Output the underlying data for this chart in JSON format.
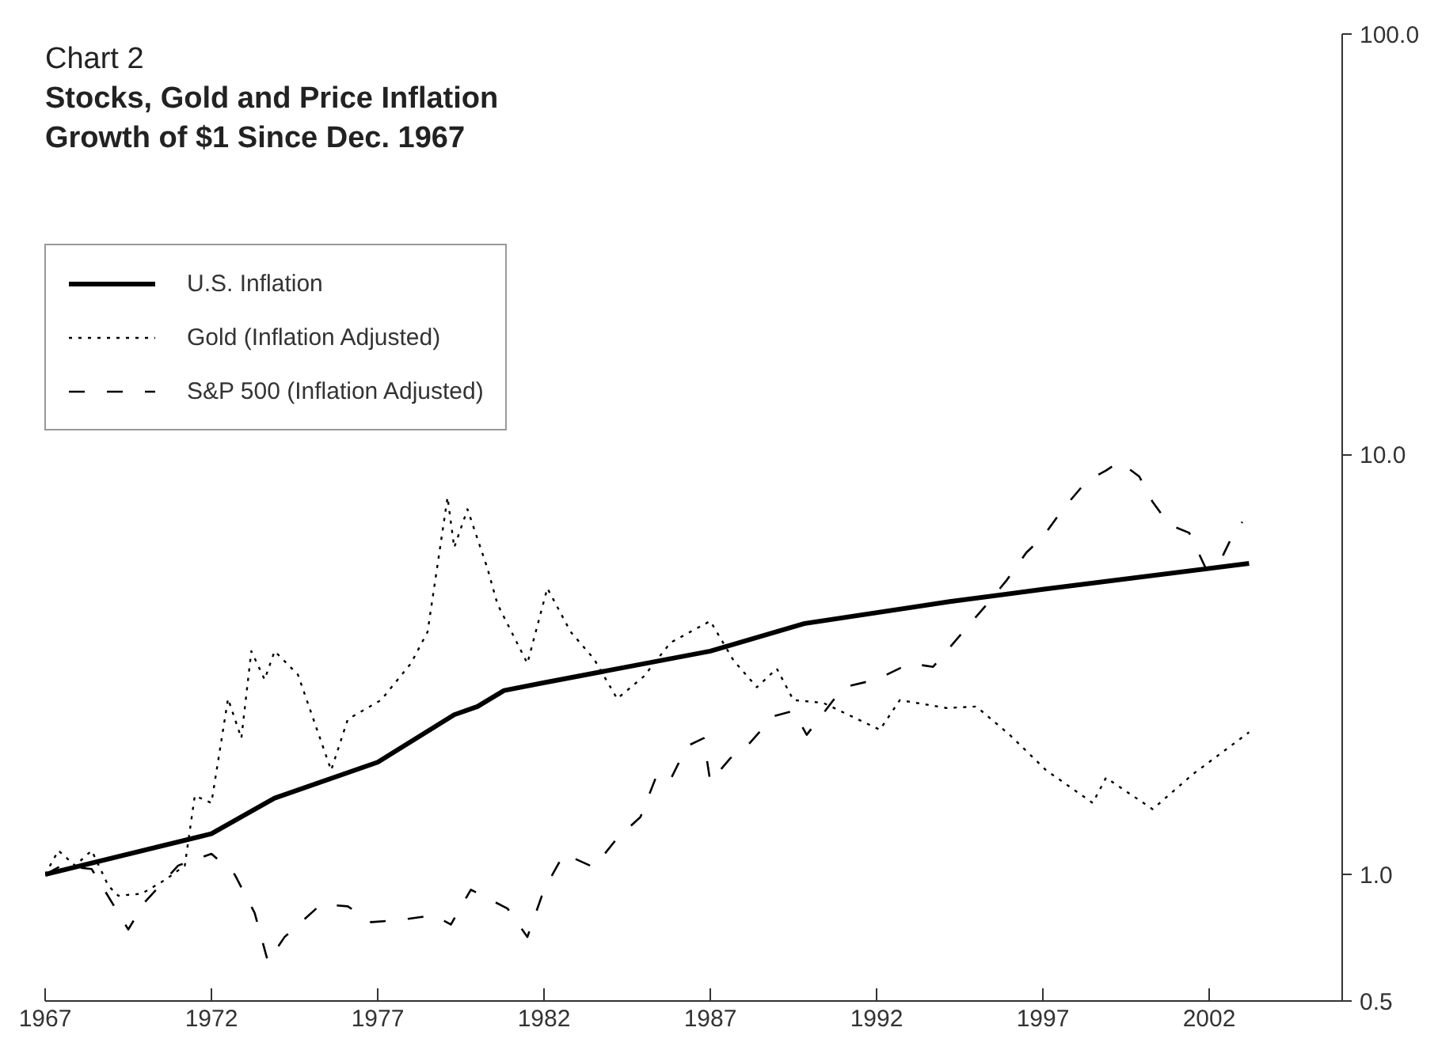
{
  "chart_data": {
    "type": "line",
    "annotations": [
      "Chart 2"
    ],
    "title": "Stocks, Gold and Price Inflation",
    "subtitle": "Growth of $1 Since Dec. 1967",
    "xlim": [
      1967,
      2006
    ],
    "xticks": [
      1967,
      1972,
      1977,
      1982,
      1987,
      1992,
      1997,
      2002
    ],
    "ylim": [
      0.5,
      100
    ],
    "yticks": [
      {
        "value": 0.5,
        "label": "0.5"
      },
      {
        "value": 1,
        "label": "1.0"
      },
      {
        "value": 10,
        "label": "10.0"
      },
      {
        "value": 100,
        "label": "100.0"
      }
    ],
    "log": "y",
    "grid": false,
    "legend": "top left",
    "marker": "none",
    "series": [
      {
        "name": "U.S. Inflation",
        "color": "#000000",
        "line_style": "solid",
        "x": [
          1967.0,
          1972.0,
          1973.9,
          1977.0,
          1979.3,
          1980.0,
          1980.8,
          1982.0,
          1987.0,
          1989.8,
          1994.2,
          1997.0,
          2003.2
        ],
        "values": [
          1.0,
          1.25,
          1.52,
          1.85,
          2.4,
          2.51,
          2.74,
          2.86,
          3.4,
          3.95,
          4.46,
          4.77,
          5.5
        ]
      },
      {
        "name": "Gold (Inflation Adjusted)",
        "color": "#000000",
        "line_style": "dotted",
        "x": [
          1967.0,
          1967.4,
          1967.9,
          1968.4,
          1968.9,
          1969.2,
          1969.9,
          1970.6,
          1971.2,
          1971.5,
          1972.0,
          1972.5,
          1972.9,
          1973.2,
          1973.6,
          1973.9,
          1974.6,
          1975.6,
          1976.1,
          1977.1,
          1978.0,
          1978.5,
          1979.1,
          1979.3,
          1979.7,
          1980.3,
          1980.6,
          1981.5,
          1982.1,
          1982.8,
          1983.5,
          1984.2,
          1985.0,
          1985.8,
          1987.0,
          1987.7,
          1988.4,
          1989.0,
          1989.5,
          1990.4,
          1992.1,
          1992.7,
          1994.1,
          1995.0,
          1996.0,
          1997.1,
          1998.5,
          1998.9,
          2000.3,
          2001.5,
          2003.2
        ],
        "values": [
          1.0,
          1.14,
          1.05,
          1.14,
          0.94,
          0.89,
          0.9,
          0.97,
          1.05,
          1.54,
          1.48,
          2.62,
          2.11,
          3.4,
          2.91,
          3.4,
          2.99,
          1.77,
          2.34,
          2.6,
          3.18,
          3.78,
          7.9,
          6.0,
          7.4,
          5.35,
          4.4,
          3.18,
          4.8,
          3.78,
          3.26,
          2.62,
          2.96,
          3.56,
          4.01,
          3.23,
          2.79,
          3.09,
          2.6,
          2.56,
          2.21,
          2.6,
          2.49,
          2.51,
          2.15,
          1.77,
          1.48,
          1.7,
          1.43,
          1.73,
          2.18
        ]
      },
      {
        "name": "S&P 500 (Inflation Adjusted)",
        "color": "#000000",
        "line_style": "dashed",
        "x": [
          1967.0,
          1967.5,
          1968.4,
          1969.5,
          1970.0,
          1971.0,
          1972.0,
          1972.7,
          1973.3,
          1973.7,
          1974.2,
          1975.3,
          1976.1,
          1976.8,
          1977.7,
          1978.7,
          1979.2,
          1979.8,
          1980.9,
          1981.5,
          1982.0,
          1982.6,
          1983.5,
          1984.2,
          1984.9,
          1985.4,
          1985.8,
          1986.3,
          1986.8,
          1987.0,
          1987.6,
          1988.2,
          1988.9,
          1989.5,
          1989.9,
          1991.0,
          1992.0,
          1993.0,
          1993.7,
          1994.4,
          1995.3,
          1995.9,
          1996.5,
          1997.0,
          1997.6,
          1998.3,
          1998.9,
          1999.3,
          1999.9,
          2000.3,
          2000.8,
          2001.4,
          2001.9,
          2002.3,
          2002.8,
          2003.0
        ],
        "values": [
          1.0,
          1.05,
          1.03,
          0.74,
          0.86,
          1.05,
          1.12,
          1.0,
          0.81,
          0.62,
          0.71,
          0.85,
          0.84,
          0.77,
          0.78,
          0.8,
          0.76,
          0.92,
          0.83,
          0.71,
          0.92,
          1.12,
          1.04,
          1.22,
          1.37,
          1.73,
          1.68,
          2.02,
          2.11,
          1.66,
          1.89,
          2.06,
          2.38,
          2.45,
          2.15,
          2.79,
          2.91,
          3.18,
          3.12,
          3.62,
          4.38,
          5.0,
          5.83,
          6.36,
          7.4,
          8.6,
          9.15,
          9.6,
          8.85,
          7.7,
          6.8,
          6.5,
          5.35,
          5.5,
          6.64,
          6.9
        ]
      }
    ]
  }
}
